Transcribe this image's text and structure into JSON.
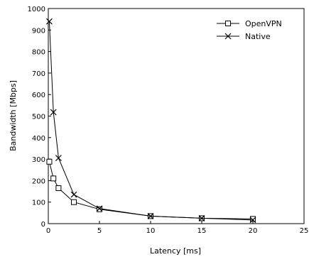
{
  "chart_data": {
    "type": "line",
    "title": "",
    "xlabel": "Latency [ms]",
    "ylabel": "Bandwidth [Mbps]",
    "xlim": [
      0,
      25
    ],
    "ylim": [
      0,
      1000
    ],
    "x_ticks": [
      0,
      5,
      10,
      15,
      20,
      25
    ],
    "y_ticks": [
      0,
      100,
      200,
      300,
      400,
      500,
      600,
      700,
      800,
      900,
      1000
    ],
    "grid": false,
    "legend_position": "top-right",
    "series": [
      {
        "name": "OpenVPN",
        "marker": "square",
        "points": [
          [
            0.1,
            288
          ],
          [
            0.5,
            210
          ],
          [
            1,
            165
          ],
          [
            2.5,
            100
          ],
          [
            5,
            67
          ],
          [
            10,
            35
          ],
          [
            15,
            25
          ],
          [
            20,
            22
          ]
        ]
      },
      {
        "name": "Native",
        "marker": "x",
        "points": [
          [
            0.1,
            940
          ],
          [
            0.5,
            518
          ],
          [
            1,
            305
          ],
          [
            2.5,
            135
          ],
          [
            5,
            70
          ],
          [
            10,
            35
          ],
          [
            15,
            25
          ],
          [
            20,
            17
          ]
        ]
      }
    ]
  }
}
